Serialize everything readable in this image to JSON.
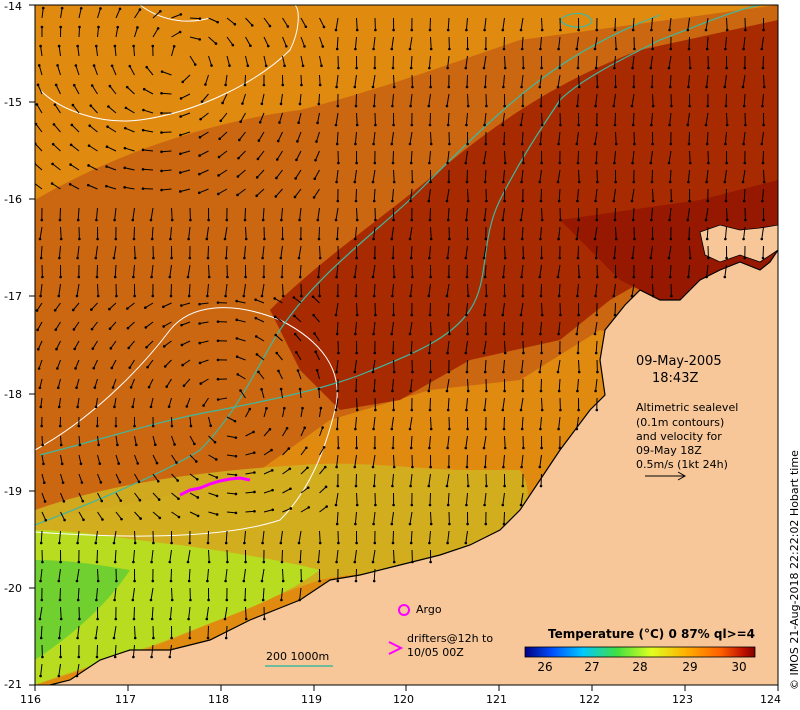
{
  "map": {
    "axes": {
      "x_ticks": [
        "116",
        "117",
        "118",
        "119",
        "120",
        "121",
        "122",
        "123",
        "124"
      ],
      "y_ticks": [
        "-14",
        "-15",
        "-16",
        "-17",
        "-18",
        "-19",
        "-20",
        "-21"
      ]
    },
    "date": "09-May-2005",
    "time": "18:43Z",
    "sealevel_note": [
      "Altimetric sealevel",
      "(0.1m contours)",
      "and velocity for",
      "09-May 18Z",
      "0.5m/s (1kt 24h)"
    ],
    "argo_label": "Argo",
    "drifters_label": [
      "drifters@12h to",
      "10/05 00Z"
    ],
    "bathy_label": "200  1000m",
    "colorbar": {
      "title": "Temperature (°C) 0 87% ql>=4",
      "ticks": [
        "26",
        "27",
        "28",
        "29",
        "30"
      ],
      "colors": [
        "#000080",
        "#0050ff",
        "#00c8ff",
        "#40e040",
        "#e0ff20",
        "#ffb000",
        "#ff6000",
        "#c01000",
        "#800000"
      ]
    },
    "copyright": "© IMOS 21-Aug-2018 22:22:02 Hobart time",
    "colors": {
      "land": "#f7c79a",
      "sst_warm": "#b52a00",
      "sst_mid": "#e08a10",
      "sst_cool": "#c8e020",
      "bathy_line": "#40b8a0",
      "drifter": "#ff00ff"
    }
  }
}
